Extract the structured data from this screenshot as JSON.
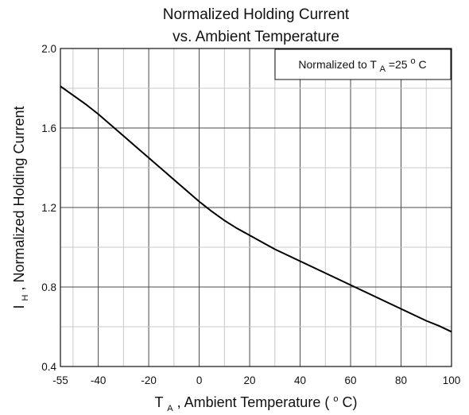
{
  "chart_data": {
    "type": "line",
    "title_line1": "Normalized Holding Current",
    "title_line2": "vs. Ambient Temperature",
    "xlabel": {
      "var": "T",
      "sub": "A",
      "rest": ", Ambient Temperature (",
      "sup": "o",
      "unit": "C)"
    },
    "ylabel": {
      "var": "I",
      "sub": "H",
      "rest": ", Normalized Holding Current"
    },
    "annotation": {
      "prefix": "Normalized to T",
      "sub": "A",
      "mid": "=25",
      "sup": "o",
      "unit": "C"
    },
    "xlim": [
      -55,
      100
    ],
    "ylim": [
      0.4,
      2.0
    ],
    "x_ticks": [
      "-55",
      "-40",
      "-20",
      "0",
      "20",
      "40",
      "60",
      "80",
      "100"
    ],
    "y_ticks": [
      "0.4",
      "0.8",
      "1.2",
      "1.6",
      "2.0"
    ],
    "grid": true,
    "series": [
      {
        "x": [
          -55,
          -50,
          -45,
          -40,
          -35,
          -30,
          -25,
          -20,
          -15,
          -10,
          -5,
          0,
          5,
          10,
          15,
          20,
          25,
          30,
          35,
          40,
          45,
          50,
          55,
          60,
          65,
          70,
          75,
          80,
          85,
          90,
          95,
          100
        ],
        "y": [
          1.81,
          1.765,
          1.72,
          1.67,
          1.615,
          1.56,
          1.505,
          1.45,
          1.395,
          1.34,
          1.285,
          1.23,
          1.18,
          1.135,
          1.095,
          1.06,
          1.025,
          0.99,
          0.96,
          0.93,
          0.9,
          0.87,
          0.84,
          0.81,
          0.78,
          0.75,
          0.72,
          0.69,
          0.66,
          0.63,
          0.605,
          0.575
        ]
      }
    ]
  }
}
